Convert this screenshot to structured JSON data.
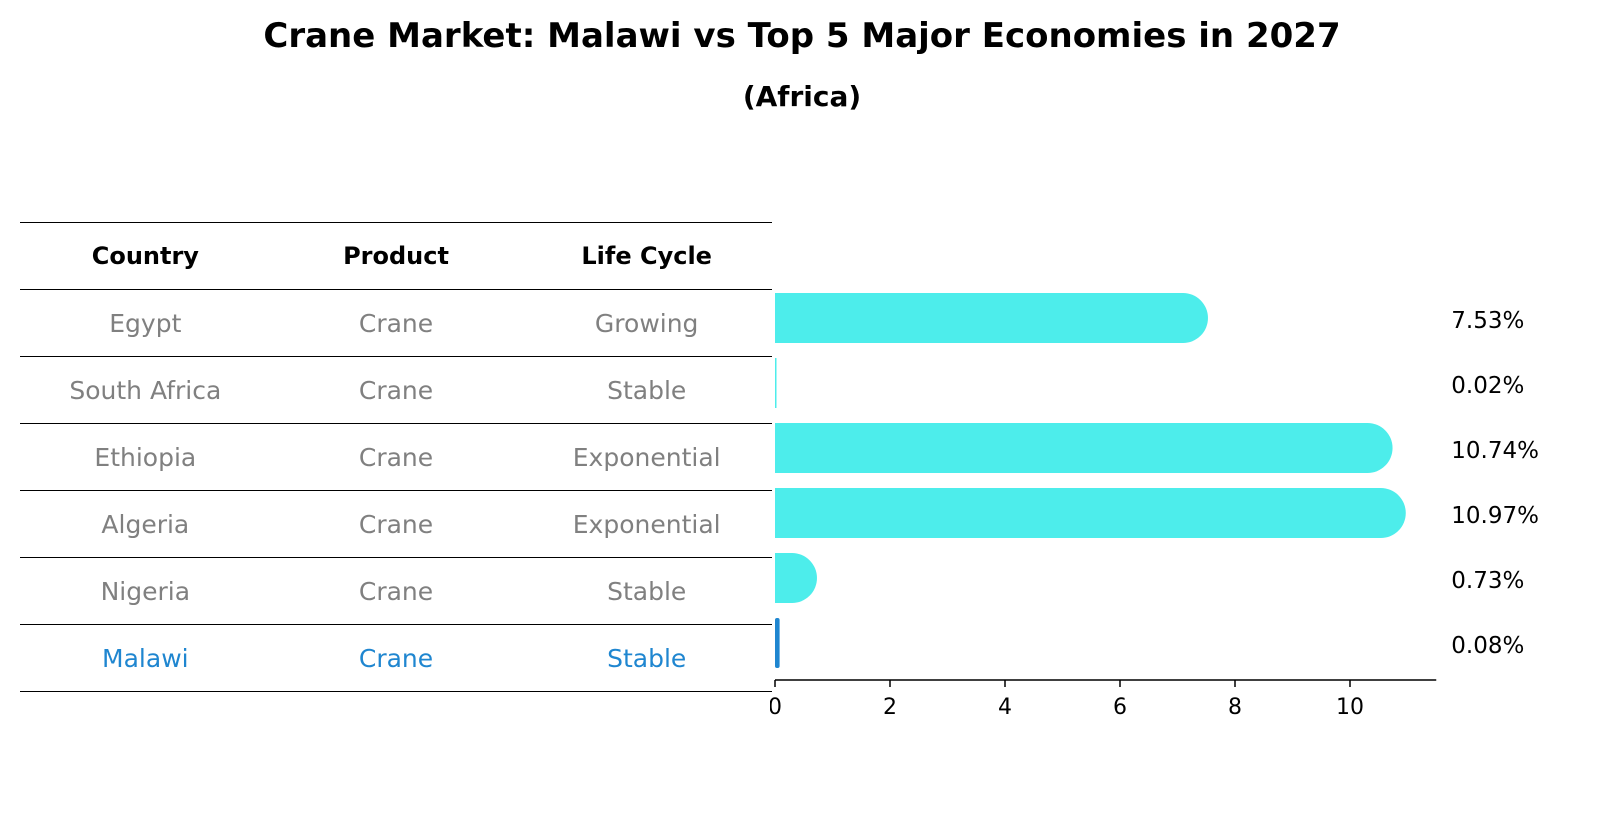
{
  "chart_data": {
    "type": "bar",
    "orientation": "horizontal",
    "title": "Crane Market: Malawi vs Top 5 Major Economies in 2027",
    "subtitle": "(Africa)",
    "categories": [
      "Egypt",
      "South Africa",
      "Ethiopia",
      "Algeria",
      "Nigeria",
      "Malawi"
    ],
    "values": [
      7.53,
      0.02,
      10.74,
      10.97,
      0.73,
      0.08
    ],
    "value_labels": [
      "7.53%",
      "0.02%",
      "10.74%",
      "10.97%",
      "0.73%",
      "0.08%"
    ],
    "xlim": [
      0,
      11.5
    ],
    "xticks": [
      0,
      2,
      4,
      6,
      8,
      10
    ],
    "highlight_category": "Malawi",
    "colors": {
      "bar": "#4DEDEB",
      "highlight": "#1F86D0",
      "muted_text": "#808080"
    },
    "table": {
      "columns": [
        "Country",
        "Product",
        "Life Cycle"
      ],
      "rows": [
        [
          "Egypt",
          "Crane",
          "Growing"
        ],
        [
          "South Africa",
          "Crane",
          "Stable"
        ],
        [
          "Ethiopia",
          "Crane",
          "Exponential"
        ],
        [
          "Algeria",
          "Crane",
          "Exponential"
        ],
        [
          "Nigeria",
          "Crane",
          "Stable"
        ],
        [
          "Malawi",
          "Crane",
          "Stable"
        ]
      ]
    }
  }
}
